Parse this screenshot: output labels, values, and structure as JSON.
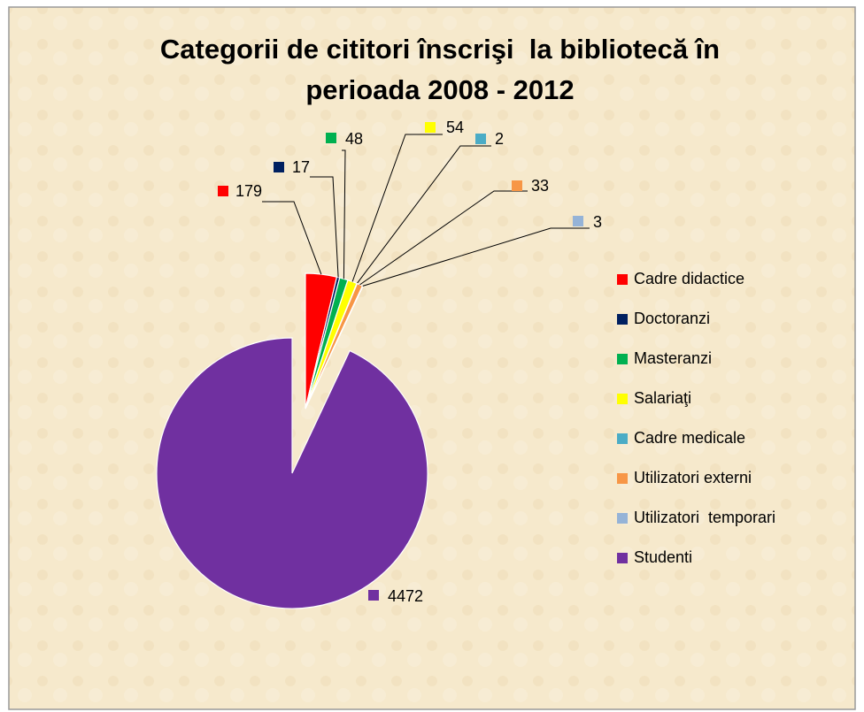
{
  "chart_data": {
    "type": "pie",
    "title": [
      "Categorii de cititori înscrişi  la bibliotecă în",
      "perioada 2008 - 2012"
    ],
    "categories": [
      "Cadre didactice",
      "Doctoranzi",
      "Masteranzi",
      "Salariaţi",
      "Cadre medicale",
      "Utilizatori externi",
      "Utilizatori  temporari",
      "Studenti"
    ],
    "values": [
      179,
      17,
      48,
      54,
      2,
      33,
      3,
      4472
    ],
    "colors": [
      "#ff0000",
      "#002060",
      "#00b050",
      "#ffff00",
      "#4bacc6",
      "#f79646",
      "#95b3d7",
      "#7030a0"
    ],
    "legend": "right"
  }
}
